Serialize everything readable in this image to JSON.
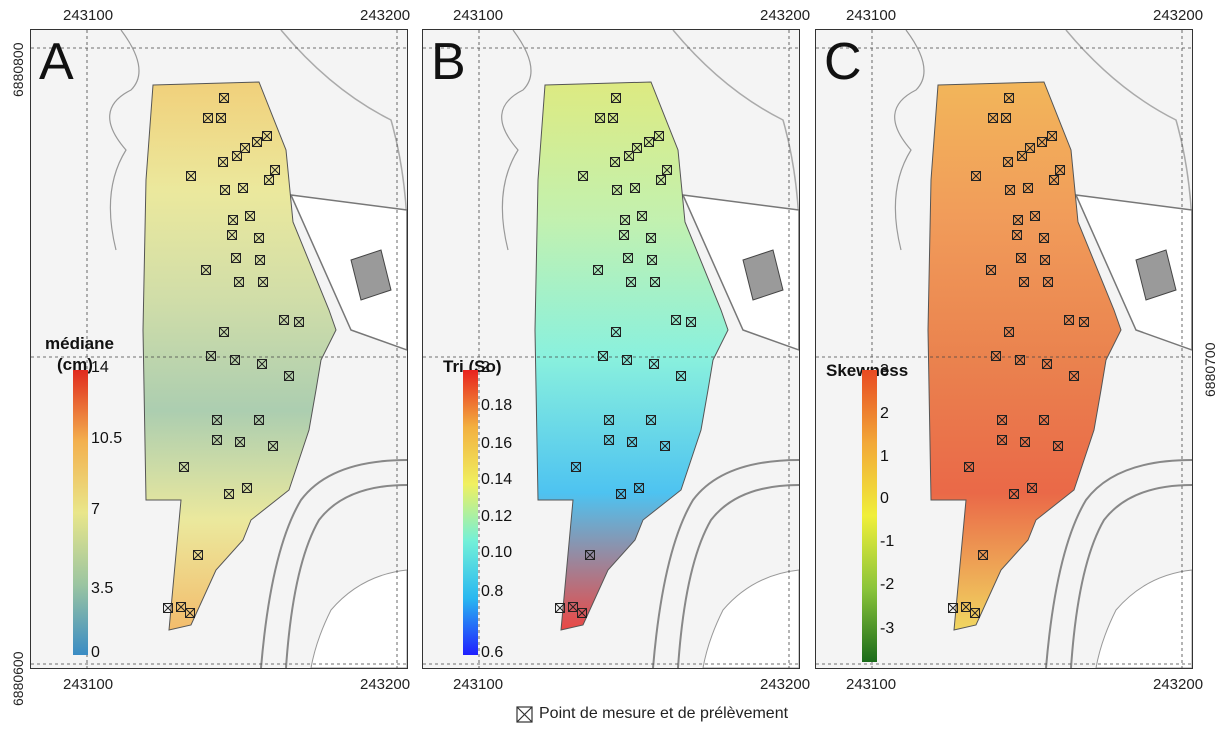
{
  "colors": {
    "mediane_ramp": [
      "#3a8cc4",
      "#9cc5a1",
      "#e9e68a",
      "#f3b04e",
      "#e02a1e"
    ],
    "tri_ramp": [
      "#1f1fff",
      "#29b8f0",
      "#73f0d8",
      "#f0f060",
      "#f2b040",
      "#e8221e"
    ],
    "skew_ramp": [
      "#1a6b1a",
      "#8ac43a",
      "#f0ef3a",
      "#f2a838",
      "#e84a22"
    ]
  },
  "panels": [
    {
      "letter": "A",
      "legend_title": [
        "médiane",
        "(cm)"
      ],
      "legend_ticks": [
        "14",
        "10.5",
        "7",
        "3.5",
        "0"
      ]
    },
    {
      "letter": "B",
      "legend_title": [
        "Tri (So)"
      ],
      "legend_ticks": [
        "2",
        "0.18",
        "0.16",
        "0.14",
        "0.12",
        "0.10",
        "0.8",
        "0.6"
      ]
    },
    {
      "letter": "C",
      "legend_title": [
        "Skewness"
      ],
      "legend_ticks": [
        "3",
        "2",
        "1",
        "0",
        "-1",
        "-2",
        "-3"
      ]
    }
  ],
  "coords": {
    "x_left": "243100",
    "x_right": "243200",
    "y_top": "6880800",
    "y_mid": "6880700",
    "y_bottom": "6880600"
  },
  "caption": "Point de mesure et de prélèvement",
  "icons": {
    "sample_point": "boxed-x-icon"
  }
}
